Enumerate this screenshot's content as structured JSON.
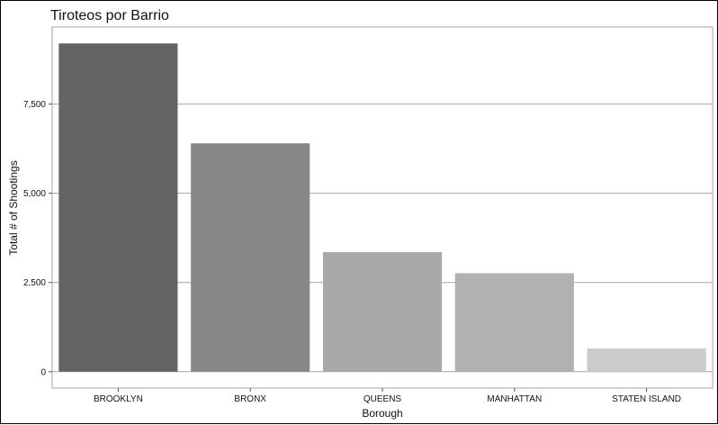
{
  "chart_data": {
    "type": "bar",
    "title": "Tiroteos por Barrio",
    "xlabel": "Borough",
    "ylabel": "Total # of Shootings",
    "categories": [
      "BROOKLYN",
      "BRONX",
      "QUEENS",
      "MANHATTAN",
      "STATEN ISLAND"
    ],
    "values": [
      9200,
      6400,
      3350,
      2760,
      650
    ],
    "bar_colors": [
      "#636363",
      "#878787",
      "#a9a9a9",
      "#b1b1b1",
      "#cbcbcb"
    ],
    "yticks": [
      0,
      2500,
      5000,
      7500
    ],
    "ytick_labels": [
      "0",
      "2,500",
      "5,000",
      "7,500"
    ],
    "ylim": [
      -460,
      9660
    ],
    "grid": true,
    "legend": "none"
  }
}
